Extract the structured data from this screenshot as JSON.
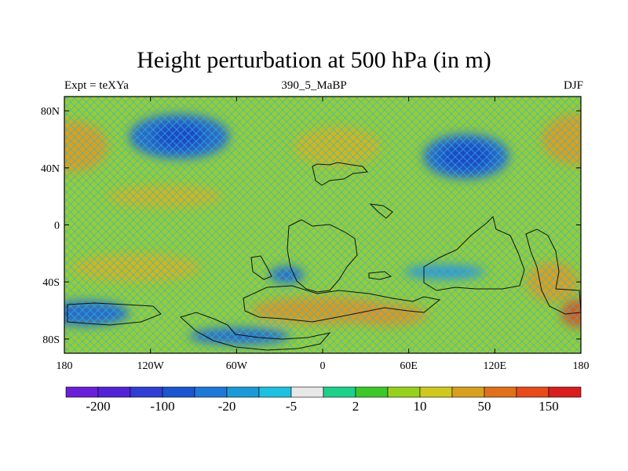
{
  "title": "Height perturbation at 500 hPa (in m)",
  "left_label": "Expt = teXYa",
  "center_label": "390_5_MaBP",
  "right_label": "DJF",
  "map": {
    "projection": "cylindrical-equidistant",
    "lon_range": [
      -180,
      180
    ],
    "lat_range": [
      -90,
      90
    ],
    "x_ticks": [
      {
        "value": -180,
        "label": "180"
      },
      {
        "value": -120,
        "label": "120W"
      },
      {
        "value": -60,
        "label": "60W"
      },
      {
        "value": 0,
        "label": "0"
      },
      {
        "value": 60,
        "label": "60E"
      },
      {
        "value": 120,
        "label": "120E"
      },
      {
        "value": 180,
        "label": "180"
      }
    ],
    "y_ticks": [
      {
        "value": 80,
        "label": "80N"
      },
      {
        "value": 40,
        "label": "40N"
      },
      {
        "value": 0,
        "label": "0"
      },
      {
        "value": -40,
        "label": "40S"
      },
      {
        "value": -80,
        "label": "80S"
      }
    ],
    "background_color": "#99cc33",
    "blobs": [
      {
        "lon": -100,
        "lat": 62,
        "rlon": 35,
        "rlat": 16,
        "color": "#1e5fd6"
      },
      {
        "lon": -100,
        "lat": 62,
        "rlon": 18,
        "rlat": 9,
        "color": "#1b46c8"
      },
      {
        "lon": 100,
        "lat": 48,
        "rlon": 30,
        "rlat": 16,
        "color": "#1e5fd6"
      },
      {
        "lon": 100,
        "lat": 48,
        "rlon": 18,
        "rlat": 10,
        "color": "#1b46c8"
      },
      {
        "lon": -165,
        "lat": -62,
        "rlon": 30,
        "rlat": 9,
        "color": "#1e5fd6"
      },
      {
        "lon": -58,
        "lat": -78,
        "rlon": 35,
        "rlat": 6,
        "color": "#1e5fd6"
      },
      {
        "lon": -25,
        "lat": -35,
        "rlon": 12,
        "rlat": 6,
        "color": "#1e5fd6"
      },
      {
        "lon": 85,
        "lat": -33,
        "rlon": 28,
        "rlat": 5,
        "color": "#2a8fe0"
      },
      {
        "lon": -175,
        "lat": 55,
        "rlon": 25,
        "rlat": 18,
        "color": "#e59a1b"
      },
      {
        "lon": 178,
        "lat": 60,
        "rlon": 25,
        "rlat": 18,
        "color": "#e59a1b"
      },
      {
        "lon": 10,
        "lat": 55,
        "rlon": 30,
        "rlat": 14,
        "color": "#d9b21a"
      },
      {
        "lon": -110,
        "lat": 20,
        "rlon": 40,
        "rlat": 8,
        "color": "#d9b21a"
      },
      {
        "lon": -130,
        "lat": -30,
        "rlon": 45,
        "rlat": 10,
        "color": "#d9b21a"
      },
      {
        "lon": 0,
        "lat": -60,
        "rlon": 50,
        "rlat": 10,
        "color": "#e5941b"
      },
      {
        "lon": 45,
        "lat": -63,
        "rlon": 28,
        "rlat": 8,
        "color": "#e5941b"
      },
      {
        "lon": 160,
        "lat": -40,
        "rlon": 18,
        "rlat": 14,
        "color": "#e59a1b"
      },
      {
        "lon": 178,
        "lat": -62,
        "rlon": 12,
        "rlat": 10,
        "color": "#e0501a"
      }
    ],
    "colorbar": {
      "colors": [
        "#6a1fd8",
        "#5422d6",
        "#2f3fd4",
        "#1b55d0",
        "#1e78d8",
        "#1c9ad8",
        "#1ec0e0",
        "#e8e8e8",
        "#1ed08a",
        "#3cc82a",
        "#98d01e",
        "#d0c81e",
        "#d8a01e",
        "#e0701a",
        "#e84a1a",
        "#d81e1e"
      ],
      "labels": [
        {
          "boundary": 1,
          "text": "-200"
        },
        {
          "boundary": 3,
          "text": "-100"
        },
        {
          "boundary": 5,
          "text": "-20"
        },
        {
          "boundary": 7,
          "text": "-5"
        },
        {
          "boundary": 9,
          "text": "2"
        },
        {
          "boundary": 11,
          "text": "10"
        },
        {
          "boundary": 13,
          "text": "50"
        },
        {
          "boundary": 15,
          "text": "150"
        }
      ]
    }
  }
}
